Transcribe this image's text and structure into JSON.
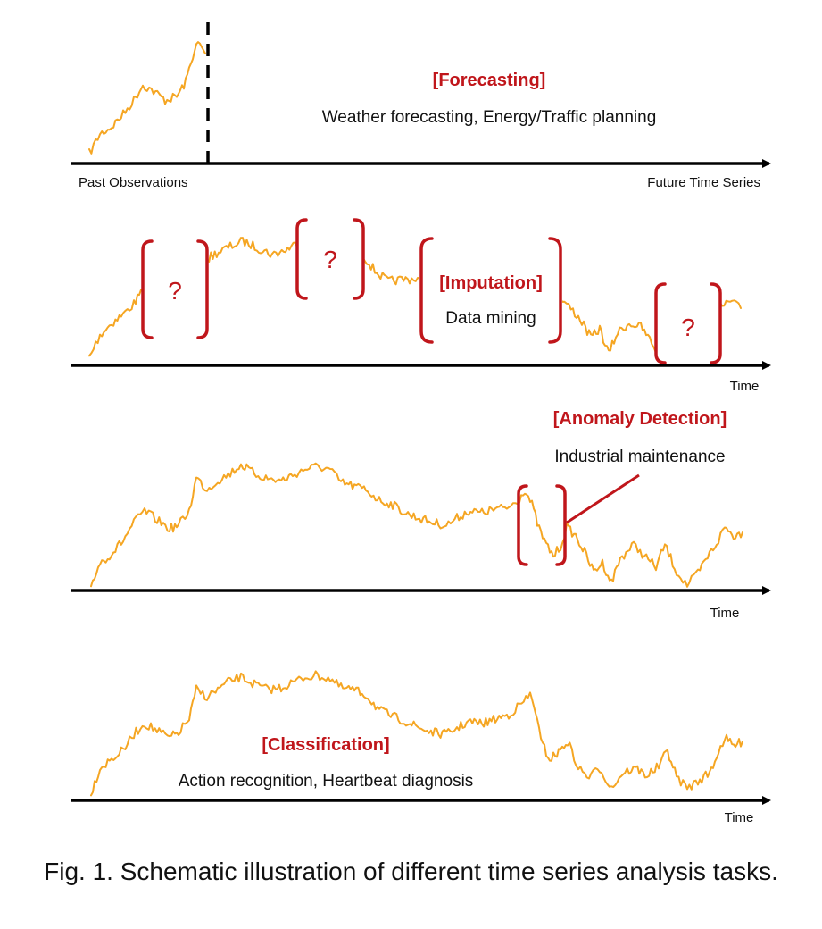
{
  "colors": {
    "series": "#f5a623",
    "accent": "#c0161b",
    "axis": "#000000",
    "text": "#111111"
  },
  "panels": {
    "forecasting": {
      "title": "[Forecasting]",
      "description": "Weather forecasting, Energy/Traffic planning",
      "label_left": "Past Observations",
      "label_right": "Future Time Series"
    },
    "imputation": {
      "title": "[Imputation]",
      "description": "Data mining",
      "missing_marker": "?",
      "axis_label": "Time"
    },
    "anomaly": {
      "title": "[Anomaly Detection]",
      "description": "Industrial maintenance",
      "axis_label": "Time"
    },
    "classification": {
      "title": "[Classification]",
      "description": "Action recognition, Heartbeat diagnosis",
      "axis_label": "Time"
    }
  },
  "caption": "Fig. 1. Schematic illustration of different time series analysis tasks."
}
